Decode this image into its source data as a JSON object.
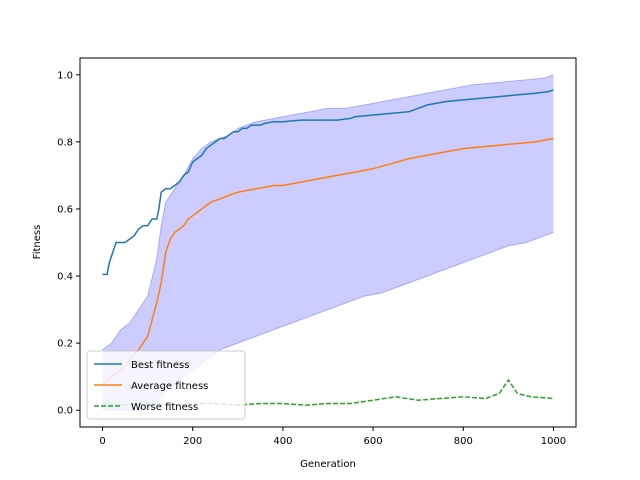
{
  "chart_data": {
    "type": "line",
    "title": "",
    "xlabel": "Generation",
    "ylabel": "Fitness",
    "xlim": [
      -50,
      1050
    ],
    "ylim": [
      -0.05,
      1.05
    ],
    "x_ticks": [
      0,
      200,
      400,
      600,
      800,
      1000
    ],
    "x_tick_labels": [
      "0",
      "200",
      "400",
      "600",
      "800",
      "1000"
    ],
    "y_ticks": [
      0.0,
      0.2,
      0.4,
      0.6,
      0.8,
      1.0
    ],
    "y_tick_labels": [
      "0.0",
      "0.2",
      "0.4",
      "0.6",
      "0.8",
      "1.0"
    ],
    "grid": false,
    "legend": {
      "position": "lower-left",
      "entries": [
        {
          "label": "Best fitness",
          "color": "#1f77b4",
          "style": "solid"
        },
        {
          "label": "Average fitness",
          "color": "#ff7f0e",
          "style": "solid"
        },
        {
          "label": "Worse fitness",
          "color": "#2ca02c",
          "style": "dashed"
        }
      ]
    },
    "band": {
      "color": "#0000ff",
      "x": [
        0,
        20,
        40,
        60,
        80,
        100,
        120,
        130,
        140,
        160,
        180,
        200,
        220,
        240,
        260,
        280,
        300,
        340,
        380,
        420,
        460,
        500,
        540,
        580,
        620,
        660,
        700,
        740,
        780,
        820,
        860,
        900,
        940,
        980,
        1000
      ],
      "upper": [
        0.18,
        0.2,
        0.24,
        0.26,
        0.3,
        0.34,
        0.45,
        0.55,
        0.62,
        0.66,
        0.7,
        0.75,
        0.78,
        0.8,
        0.81,
        0.82,
        0.84,
        0.86,
        0.87,
        0.88,
        0.89,
        0.9,
        0.9,
        0.91,
        0.92,
        0.93,
        0.94,
        0.95,
        0.96,
        0.97,
        0.975,
        0.98,
        0.985,
        0.99,
        1.0
      ],
      "lower": [
        0.0,
        0.0,
        0.0,
        0.0,
        0.0,
        0.01,
        0.02,
        0.04,
        0.06,
        0.08,
        0.1,
        0.12,
        0.14,
        0.16,
        0.18,
        0.19,
        0.2,
        0.22,
        0.24,
        0.26,
        0.28,
        0.3,
        0.32,
        0.34,
        0.35,
        0.37,
        0.39,
        0.41,
        0.43,
        0.45,
        0.47,
        0.49,
        0.5,
        0.52,
        0.53
      ]
    },
    "series": [
      {
        "name": "Best fitness",
        "color": "#1f77b4",
        "style": "solid",
        "x": [
          0,
          10,
          15,
          20,
          25,
          30,
          40,
          50,
          60,
          70,
          80,
          90,
          100,
          110,
          120,
          125,
          130,
          140,
          150,
          160,
          170,
          180,
          190,
          200,
          210,
          220,
          230,
          240,
          250,
          260,
          270,
          280,
          290,
          300,
          310,
          320,
          330,
          340,
          350,
          360,
          380,
          400,
          440,
          480,
          520,
          550,
          560,
          600,
          640,
          680,
          700,
          720,
          760,
          800,
          840,
          880,
          920,
          960,
          990,
          1000
        ],
        "y": [
          0.405,
          0.405,
          0.44,
          0.46,
          0.48,
          0.5,
          0.5,
          0.5,
          0.51,
          0.52,
          0.54,
          0.55,
          0.55,
          0.57,
          0.57,
          0.6,
          0.65,
          0.66,
          0.66,
          0.67,
          0.68,
          0.7,
          0.71,
          0.74,
          0.75,
          0.76,
          0.78,
          0.79,
          0.8,
          0.81,
          0.81,
          0.82,
          0.83,
          0.83,
          0.84,
          0.84,
          0.85,
          0.85,
          0.85,
          0.855,
          0.86,
          0.86,
          0.865,
          0.865,
          0.865,
          0.87,
          0.875,
          0.88,
          0.885,
          0.89,
          0.9,
          0.91,
          0.92,
          0.925,
          0.93,
          0.935,
          0.94,
          0.945,
          0.95,
          0.955
        ]
      },
      {
        "name": "Average fitness",
        "color": "#ff7f0e",
        "style": "solid",
        "x": [
          0,
          20,
          40,
          60,
          80,
          100,
          110,
          120,
          130,
          140,
          150,
          160,
          170,
          180,
          190,
          200,
          220,
          240,
          260,
          280,
          300,
          320,
          340,
          360,
          380,
          400,
          440,
          480,
          520,
          560,
          600,
          640,
          680,
          720,
          760,
          800,
          840,
          880,
          920,
          960,
          1000
        ],
        "y": [
          0.08,
          0.1,
          0.12,
          0.15,
          0.18,
          0.22,
          0.27,
          0.32,
          0.38,
          0.47,
          0.51,
          0.53,
          0.54,
          0.55,
          0.57,
          0.58,
          0.6,
          0.62,
          0.63,
          0.64,
          0.65,
          0.655,
          0.66,
          0.665,
          0.67,
          0.67,
          0.68,
          0.69,
          0.7,
          0.71,
          0.72,
          0.735,
          0.75,
          0.76,
          0.77,
          0.78,
          0.785,
          0.79,
          0.795,
          0.8,
          0.81
        ]
      },
      {
        "name": "Worse fitness",
        "color": "#2ca02c",
        "style": "dashed",
        "x": [
          0,
          50,
          100,
          150,
          200,
          250,
          300,
          350,
          400,
          450,
          500,
          550,
          600,
          650,
          700,
          750,
          800,
          850,
          880,
          900,
          920,
          950,
          1000
        ],
        "y": [
          0.02,
          0.015,
          0.02,
          0.015,
          0.02,
          0.02,
          0.015,
          0.02,
          0.02,
          0.015,
          0.02,
          0.02,
          0.03,
          0.04,
          0.03,
          0.035,
          0.04,
          0.035,
          0.05,
          0.09,
          0.05,
          0.04,
          0.035
        ]
      }
    ]
  }
}
